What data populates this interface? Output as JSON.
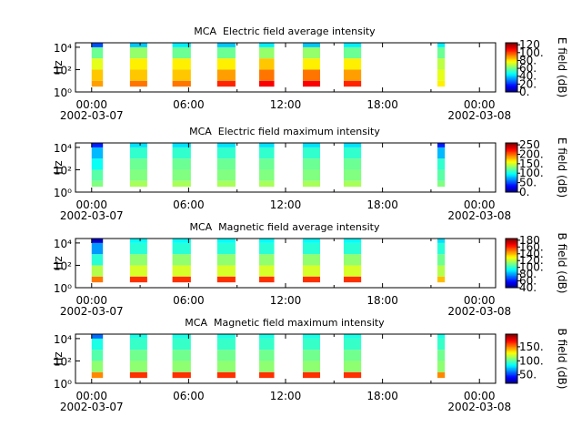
{
  "chart_data": [
    {
      "type": "heatmap",
      "title": "MCA  Electric field average intensity",
      "ylabel": "Hz",
      "colorbar_label": "E field (dB)",
      "xlim": [
        -1,
        25
      ],
      "xticks": [
        {
          "value": 0,
          "label": "00:00"
        },
        {
          "value": 6,
          "label": "06:00"
        },
        {
          "value": 12,
          "label": "12:00"
        },
        {
          "value": 18,
          "label": "18:00"
        },
        {
          "value": 24,
          "label": "00:00"
        }
      ],
      "xminor": [
        3,
        9,
        15,
        21
      ],
      "date_labels": [
        {
          "value": 0,
          "label": "2002-03-07"
        },
        {
          "value": 24,
          "label": "2002-03-08"
        }
      ],
      "log_y": true,
      "ylim": [
        1,
        25000
      ],
      "yticks": [
        {
          "value": 1,
          "label": "10⁰"
        },
        {
          "value": 100,
          "label": "10²"
        },
        {
          "value": 10000,
          "label": "10⁴"
        }
      ],
      "freq_edges": [
        3,
        10,
        100,
        1000,
        10000,
        25000
      ],
      "clim": [
        0,
        125
      ],
      "cticks": [
        {
          "value": 0,
          "label": "0."
        },
        {
          "value": 20,
          "label": "20."
        },
        {
          "value": 40,
          "label": "40."
        },
        {
          "value": 60,
          "label": "60."
        },
        {
          "value": 80,
          "label": "80."
        },
        {
          "value": 100,
          "label": "100."
        },
        {
          "value": 120,
          "label": "120"
        }
      ],
      "segments": [
        {
          "start": 0.0,
          "end": 0.7,
          "values": [
            90,
            85,
            75,
            60,
            25
          ]
        },
        {
          "start": 2.37,
          "end": 3.44,
          "values": [
            95,
            85,
            80,
            65,
            40
          ]
        },
        {
          "start": 5.0,
          "end": 6.14,
          "values": [
            95,
            85,
            80,
            60,
            45
          ]
        },
        {
          "start": 7.77,
          "end": 8.9,
          "values": [
            105,
            90,
            80,
            60,
            40
          ]
        },
        {
          "start": 10.37,
          "end": 11.3,
          "values": [
            110,
            95,
            85,
            65,
            45
          ]
        },
        {
          "start": 13.07,
          "end": 14.14,
          "values": [
            110,
            95,
            80,
            65,
            40
          ]
        },
        {
          "start": 15.6,
          "end": 16.68,
          "values": [
            105,
            90,
            80,
            60,
            45
          ]
        },
        {
          "start": 21.4,
          "end": 21.86,
          "values": [
            80,
            75,
            70,
            60,
            45
          ]
        }
      ]
    },
    {
      "type": "heatmap",
      "title": "MCA  Electric field maximum intensity",
      "ylabel": "Hz",
      "colorbar_label": "E field (dB)",
      "xlim": [
        -1,
        25
      ],
      "xticks": [
        {
          "value": 0,
          "label": "00:00"
        },
        {
          "value": 6,
          "label": "06:00"
        },
        {
          "value": 12,
          "label": "12:00"
        },
        {
          "value": 18,
          "label": "18:00"
        },
        {
          "value": 24,
          "label": "00:00"
        }
      ],
      "xminor": [
        3,
        9,
        15,
        21
      ],
      "date_labels": [
        {
          "value": 0,
          "label": "2002-03-07"
        },
        {
          "value": 24,
          "label": "2002-03-08"
        }
      ],
      "log_y": true,
      "ylim": [
        1,
        25000
      ],
      "yticks": [
        {
          "value": 1,
          "label": "10⁰"
        },
        {
          "value": 100,
          "label": "10²"
        },
        {
          "value": 10000,
          "label": "10⁴"
        }
      ],
      "freq_edges": [
        3,
        10,
        100,
        1000,
        10000,
        25000
      ],
      "clim": [
        0,
        260
      ],
      "cticks": [
        {
          "value": 0,
          "label": "0."
        },
        {
          "value": 50,
          "label": "50."
        },
        {
          "value": 100,
          "label": "100."
        },
        {
          "value": 150,
          "label": "150."
        },
        {
          "value": 200,
          "label": "200."
        },
        {
          "value": 250,
          "label": "250"
        }
      ],
      "segments": [
        {
          "start": 0.0,
          "end": 0.7,
          "values": [
            130,
            120,
            100,
            80,
            40
          ]
        },
        {
          "start": 2.37,
          "end": 3.44,
          "values": [
            140,
            130,
            125,
            110,
            90
          ]
        },
        {
          "start": 5.0,
          "end": 6.14,
          "values": [
            140,
            130,
            125,
            110,
            90
          ]
        },
        {
          "start": 7.77,
          "end": 8.9,
          "values": [
            140,
            130,
            125,
            110,
            90
          ]
        },
        {
          "start": 10.37,
          "end": 11.3,
          "values": [
            140,
            130,
            125,
            110,
            90
          ]
        },
        {
          "start": 13.07,
          "end": 14.14,
          "values": [
            140,
            130,
            125,
            110,
            90
          ]
        },
        {
          "start": 15.6,
          "end": 16.68,
          "values": [
            140,
            130,
            125,
            110,
            90
          ]
        },
        {
          "start": 21.4,
          "end": 21.86,
          "values": [
            130,
            120,
            110,
            80,
            40
          ]
        }
      ]
    },
    {
      "type": "heatmap",
      "title": "MCA  Magnetic field average intensity",
      "ylabel": "Hz",
      "colorbar_label": "B field (dB)",
      "xlim": [
        -1,
        25
      ],
      "xticks": [
        {
          "value": 0,
          "label": "00:00"
        },
        {
          "value": 6,
          "label": "06:00"
        },
        {
          "value": 12,
          "label": "12:00"
        },
        {
          "value": 18,
          "label": "18:00"
        },
        {
          "value": 24,
          "label": "00:00"
        }
      ],
      "xminor": [
        3,
        9,
        15,
        21
      ],
      "date_labels": [
        {
          "value": 0,
          "label": "2002-03-07"
        },
        {
          "value": 24,
          "label": "2002-03-08"
        }
      ],
      "log_y": true,
      "ylim": [
        1,
        25000
      ],
      "yticks": [
        {
          "value": 1,
          "label": "10⁰"
        },
        {
          "value": 100,
          "label": "10²"
        },
        {
          "value": 10000,
          "label": "10⁴"
        }
      ],
      "freq_edges": [
        3,
        10,
        100,
        1000,
        10000,
        25000
      ],
      "clim": [
        40,
        185
      ],
      "cticks": [
        {
          "value": 40,
          "label": "40."
        },
        {
          "value": 60,
          "label": "60."
        },
        {
          "value": 80,
          "label": "80."
        },
        {
          "value": 100,
          "label": "100."
        },
        {
          "value": 120,
          "label": "120."
        },
        {
          "value": 140,
          "label": "140."
        },
        {
          "value": 160,
          "label": "160."
        },
        {
          "value": 180,
          "label": "180"
        }
      ],
      "segments": [
        {
          "start": 0.0,
          "end": 0.7,
          "values": [
            150,
            120,
            100,
            80,
            50
          ]
        },
        {
          "start": 2.37,
          "end": 3.44,
          "values": [
            160,
            125,
            115,
            100,
            95
          ]
        },
        {
          "start": 5.0,
          "end": 6.14,
          "values": [
            160,
            125,
            115,
            100,
            95
          ]
        },
        {
          "start": 7.77,
          "end": 8.9,
          "values": [
            160,
            125,
            115,
            100,
            95
          ]
        },
        {
          "start": 10.37,
          "end": 11.3,
          "values": [
            160,
            125,
            115,
            100,
            95
          ]
        },
        {
          "start": 13.07,
          "end": 14.14,
          "values": [
            160,
            125,
            115,
            100,
            95
          ]
        },
        {
          "start": 15.6,
          "end": 16.68,
          "values": [
            160,
            125,
            115,
            100,
            95
          ]
        },
        {
          "start": 21.4,
          "end": 21.86,
          "values": [
            140,
            120,
            110,
            100,
            90
          ]
        }
      ]
    },
    {
      "type": "heatmap",
      "title": "MCA  Magnetic field maximum intensity",
      "ylabel": "Hz",
      "colorbar_label": "B field (dB)",
      "xlim": [
        -1,
        25
      ],
      "xticks": [
        {
          "value": 0,
          "label": "00:00"
        },
        {
          "value": 6,
          "label": "06:00"
        },
        {
          "value": 12,
          "label": "12:00"
        },
        {
          "value": 18,
          "label": "18:00"
        },
        {
          "value": 24,
          "label": "00:00"
        }
      ],
      "xminor": [
        3,
        9,
        15,
        21
      ],
      "date_labels": [
        {
          "value": 0,
          "label": "2002-03-07"
        },
        {
          "value": 24,
          "label": "2002-03-08"
        }
      ],
      "log_y": true,
      "ylim": [
        1,
        25000
      ],
      "yticks": [
        {
          "value": 1,
          "label": "10⁰"
        },
        {
          "value": 100,
          "label": "10²"
        },
        {
          "value": 10000,
          "label": "10⁴"
        }
      ],
      "freq_edges": [
        3,
        10,
        100,
        1000,
        10000,
        25000
      ],
      "clim": [
        20,
        195
      ],
      "cticks": [
        {
          "value": 50,
          "label": "50."
        },
        {
          "value": 100,
          "label": "100."
        },
        {
          "value": 150,
          "label": "150."
        }
      ],
      "segments": [
        {
          "start": 0.0,
          "end": 0.7,
          "values": [
            150,
            110,
            100,
            90,
            60
          ]
        },
        {
          "start": 2.37,
          "end": 3.44,
          "values": [
            165,
            110,
            105,
            95,
            90
          ]
        },
        {
          "start": 5.0,
          "end": 6.14,
          "values": [
            165,
            110,
            105,
            95,
            90
          ]
        },
        {
          "start": 7.77,
          "end": 8.9,
          "values": [
            165,
            110,
            105,
            95,
            90
          ]
        },
        {
          "start": 10.37,
          "end": 11.3,
          "values": [
            165,
            110,
            105,
            95,
            90
          ]
        },
        {
          "start": 13.07,
          "end": 14.14,
          "values": [
            165,
            110,
            105,
            95,
            90
          ]
        },
        {
          "start": 15.6,
          "end": 16.68,
          "values": [
            165,
            110,
            105,
            95,
            90
          ]
        },
        {
          "start": 21.4,
          "end": 21.86,
          "values": [
            150,
            110,
            105,
            95,
            90
          ]
        }
      ]
    }
  ]
}
